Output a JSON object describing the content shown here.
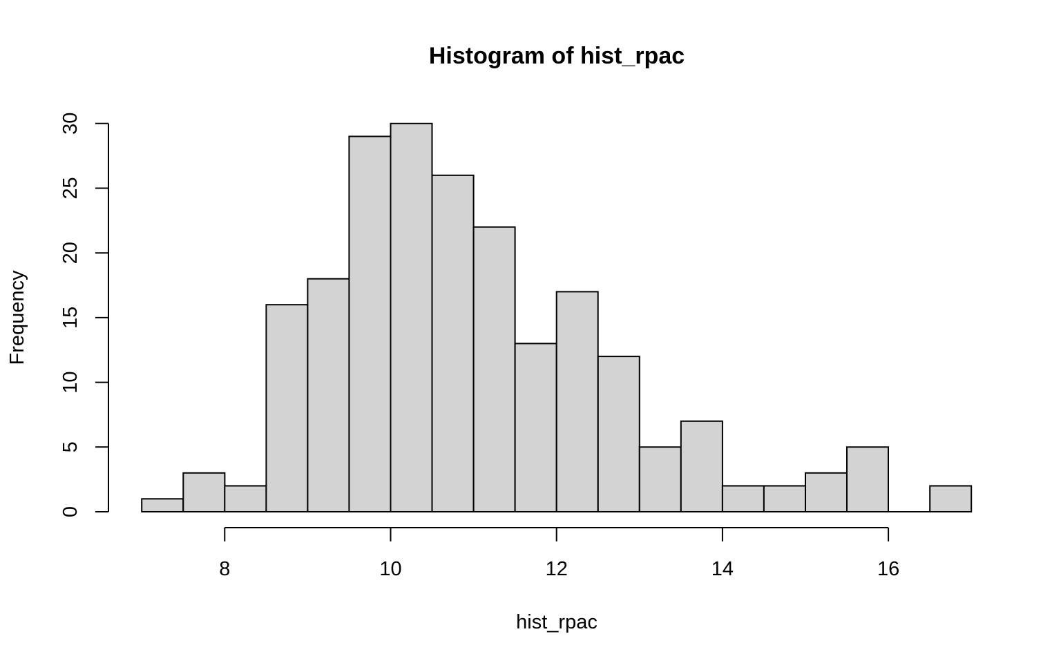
{
  "chart_data": {
    "type": "bar",
    "title": "Histogram of hist_rpac",
    "xlabel": "hist_rpac",
    "ylabel": "Frequency",
    "bins": [
      {
        "start": 7.0,
        "end": 7.5,
        "count": 1
      },
      {
        "start": 7.5,
        "end": 8.0,
        "count": 3
      },
      {
        "start": 8.0,
        "end": 8.5,
        "count": 2
      },
      {
        "start": 8.5,
        "end": 9.0,
        "count": 16
      },
      {
        "start": 9.0,
        "end": 9.5,
        "count": 18
      },
      {
        "start": 9.5,
        "end": 10.0,
        "count": 29
      },
      {
        "start": 10.0,
        "end": 10.5,
        "count": 30
      },
      {
        "start": 10.5,
        "end": 11.0,
        "count": 26
      },
      {
        "start": 11.0,
        "end": 11.5,
        "count": 22
      },
      {
        "start": 11.5,
        "end": 12.0,
        "count": 13
      },
      {
        "start": 12.0,
        "end": 12.5,
        "count": 17
      },
      {
        "start": 12.5,
        "end": 13.0,
        "count": 12
      },
      {
        "start": 13.0,
        "end": 13.5,
        "count": 5
      },
      {
        "start": 13.5,
        "end": 14.0,
        "count": 7
      },
      {
        "start": 14.0,
        "end": 14.5,
        "count": 2
      },
      {
        "start": 14.5,
        "end": 15.0,
        "count": 2
      },
      {
        "start": 15.0,
        "end": 15.5,
        "count": 3
      },
      {
        "start": 15.5,
        "end": 16.0,
        "count": 5
      },
      {
        "start": 16.0,
        "end": 16.5,
        "count": 0
      },
      {
        "start": 16.5,
        "end": 17.0,
        "count": 2
      }
    ],
    "x_ticks": [
      "8",
      "10",
      "12",
      "14",
      "16"
    ],
    "y_ticks": [
      "0",
      "5",
      "10",
      "15",
      "20",
      "25",
      "30"
    ],
    "xlim": [
      7,
      17
    ],
    "ylim": [
      0,
      30
    ],
    "grid": false,
    "bar_color": "#d3d3d3",
    "edge_color": "#000000"
  }
}
